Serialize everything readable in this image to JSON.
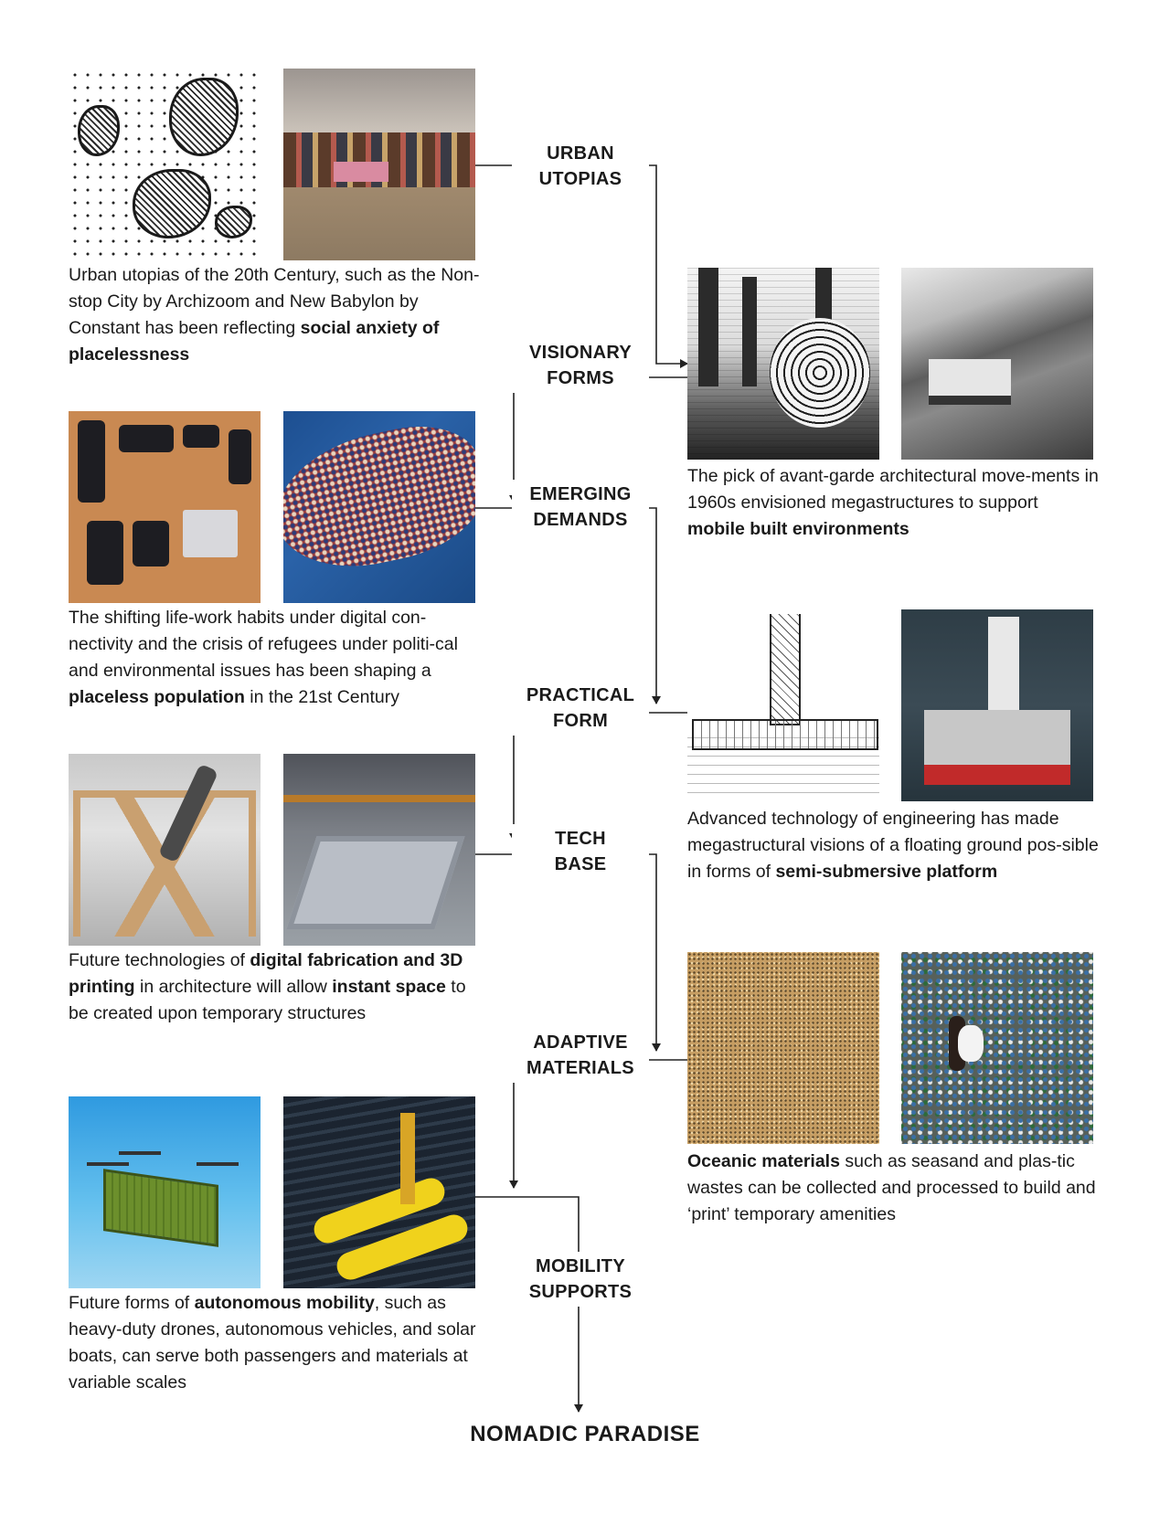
{
  "stages": [
    {
      "id": "urban-utopias",
      "line1": "URBAN",
      "line2": "UTOPIAS"
    },
    {
      "id": "visionary-forms",
      "line1": "VISIONARY",
      "line2": "FORMS"
    },
    {
      "id": "emerging-demands",
      "line1": "EMERGING",
      "line2": "DEMANDS"
    },
    {
      "id": "practical-form",
      "line1": "PRACTICAL",
      "line2": "FORM"
    },
    {
      "id": "tech-base",
      "line1": "TECH",
      "line2": "BASE"
    },
    {
      "id": "adaptive-materials",
      "line1": "ADAPTIVE",
      "line2": "MATERIALS"
    },
    {
      "id": "mobility-supports",
      "line1": "MOBILITY",
      "line2": "SUPPORTS"
    }
  ],
  "final": "NOMADIC PARADISE",
  "captions": {
    "urban": {
      "a": "Urban utopias of the 20th Century, such as the Non-stop City by Archizoom and New Babylon by Constant has been reflecting ",
      "b1": "social anxiety of placelessness"
    },
    "visionary": {
      "a": "The pick of avant-garde architectural move-ments in 1960s envisioned megastructures to support ",
      "b1": "mobile built environments"
    },
    "emerging": {
      "a": "The shifting life-work habits under digital con-nectivity and the crisis of refugees under politi-cal and environmental issues has been shaping a ",
      "b1": "placeless population",
      "c": " in the 21st Century"
    },
    "practical": {
      "a": "Advanced technology of engineering has made megastructural visions of a floating ground pos-sible in forms of ",
      "b1": "semi-submersive platform"
    },
    "tech": {
      "a": "Future technologies of ",
      "b1": "digital fabrication and 3D printing",
      "c": " in architecture will allow ",
      "b2": "instant space",
      "d": " to be created upon temporary structures"
    },
    "adaptive": {
      "b1": "Oceanic materials",
      "a": " such as seasand and plas-tic wastes can be collected and processed to build and ‘print’ temporary amenities"
    },
    "mobility": {
      "a": "Future forms of ",
      "b1": "autonomous mobility",
      "c": ", such as heavy-duty drones, autonomous vehicles, and solar boats, can serve both passengers and materials at variable scales"
    }
  },
  "colors": {
    "line": "#222222",
    "text": "#1a1a1a",
    "background": "#ffffff"
  }
}
